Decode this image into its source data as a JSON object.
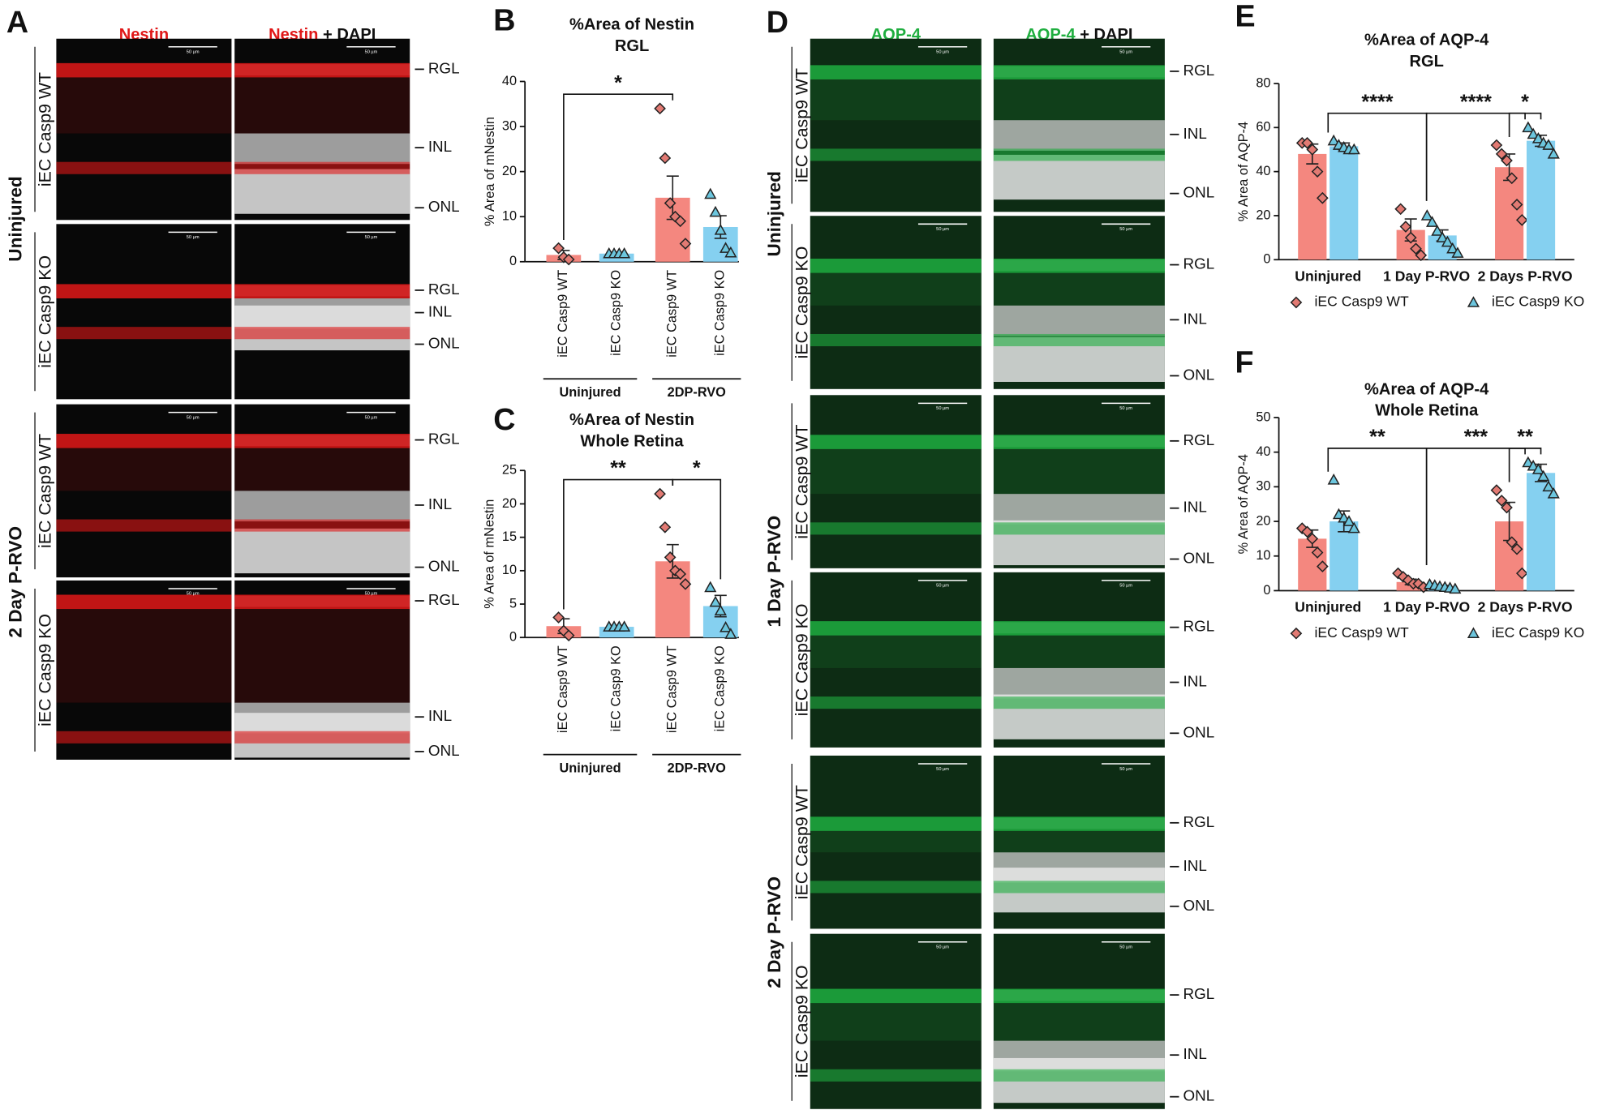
{
  "figure_a": {
    "panel": "A",
    "marker": "Nestin",
    "suffix": "+ DAPI",
    "scale_bar": "50 µm",
    "conditions": [
      "Uninjured",
      "2 Day P-RVO"
    ],
    "genotypes": [
      "iEC Casp9 WT",
      "iEC Casp9 KO"
    ],
    "layers": [
      "RGL",
      "INL",
      "ONL"
    ]
  },
  "figure_d": {
    "panel": "D",
    "marker": "AQP-4",
    "suffix": "+ DAPI",
    "scale_bar": "50 µm",
    "conditions": [
      "Uninjured",
      "1 Day P-RVO",
      "2 Day P-RVO"
    ],
    "genotypes": [
      "iEC Casp9 WT",
      "iEC Casp9 KO"
    ],
    "layers": [
      "RGL",
      "INL",
      "ONL"
    ]
  },
  "chart_data": [
    {
      "type": "bar",
      "panel": "B",
      "title": "%Area of Nestin",
      "subtitle": "RGL",
      "y_label": "% Area of mNestin",
      "categories": [
        "iEC Casp9 WT",
        "iEC Casp9 KO",
        "iEC Casp9 WT",
        "iEC Casp9 KO"
      ],
      "groups": [
        "Uninjured",
        "2DP-RVO"
      ],
      "values": [
        1.5,
        1.8,
        14.2,
        7.7
      ],
      "errors": [
        1,
        0.3,
        4.8,
        2.5
      ],
      "colors": [
        "#f4877f",
        "#85d0f0",
        "#f4877f",
        "#85d0f0"
      ],
      "point_markers": [
        "diamond",
        "triangle",
        "diamond",
        "triangle"
      ],
      "points": [
        [
          3,
          1,
          0.5
        ],
        [
          1.8,
          1.8,
          1.8,
          1.8
        ],
        [
          34,
          23,
          13,
          10,
          9,
          4
        ],
        [
          15,
          11,
          7,
          3,
          2
        ]
      ],
      "ylim": [
        0,
        40
      ],
      "yticks": [
        0,
        10,
        20,
        30,
        40
      ],
      "significance": [
        {
          "label": "*",
          "from": 0,
          "to": 2
        }
      ]
    },
    {
      "type": "bar",
      "panel": "C",
      "title": "%Area of Nestin",
      "subtitle": "Whole Retina",
      "y_label": "% Area of mNestin",
      "categories": [
        "iEC Casp9 WT",
        "iEC Casp9 KO",
        "iEC Casp9 WT",
        "iEC Casp9 KO"
      ],
      "groups": [
        "Uninjured",
        "2DP-RVO"
      ],
      "values": [
        1.7,
        1.6,
        11.4,
        4.7
      ],
      "errors": [
        1.1,
        0.2,
        2.5,
        1.6
      ],
      "colors": [
        "#f4877f",
        "#85d0f0",
        "#f4877f",
        "#85d0f0"
      ],
      "point_markers": [
        "diamond",
        "triangle",
        "diamond",
        "triangle"
      ],
      "points": [
        [
          3,
          1,
          0.3
        ],
        [
          1.6,
          1.6,
          1.6,
          1.6
        ],
        [
          21.5,
          16.5,
          12,
          10,
          9.5,
          8
        ],
        [
          7.5,
          5.3,
          4,
          1.5,
          0.5
        ]
      ],
      "ylim": [
        0,
        25
      ],
      "yticks": [
        0,
        5,
        10,
        15,
        20,
        25
      ],
      "significance": [
        {
          "label": "**",
          "from": 0,
          "to": 2
        },
        {
          "label": "*",
          "from": 2,
          "to": 3
        }
      ]
    },
    {
      "type": "grouped_bar",
      "panel": "E",
      "title": "%Area of AQP-4",
      "subtitle": "RGL",
      "y_label": "% Area of AQP-4",
      "categories": [
        "Uninjured",
        "1 Day P-RVO",
        "2 Days P-RVO"
      ],
      "series": [
        {
          "name": "iEC Casp9 WT",
          "color": "#f4877f",
          "marker": "diamond",
          "values": [
            48,
            13.5,
            42
          ],
          "errors": [
            4.5,
            5,
            6
          ],
          "points": [
            [
              53,
              53,
              50,
              40,
              28
            ],
            [
              23,
              15,
              10,
              5,
              2
            ],
            [
              52,
              48,
              45,
              37,
              25,
              18
            ]
          ]
        },
        {
          "name": "iEC Casp9 KO",
          "color": "#85d0f0",
          "marker": "triangle",
          "values": [
            51.5,
            11,
            54
          ],
          "errors": [
            1.5,
            2.5,
            2.5
          ],
          "points": [
            [
              54,
              52,
              51,
              50,
              50
            ],
            [
              20,
              17,
              13,
              10,
              8,
              5,
              3
            ],
            [
              60,
              57,
              55,
              53,
              52,
              48
            ]
          ]
        }
      ],
      "ylim": [
        0,
        80
      ],
      "yticks": [
        0,
        20,
        40,
        60,
        80
      ],
      "significance": [
        {
          "label": "****",
          "from": 0,
          "to": 1
        },
        {
          "label": "****",
          "from": 1,
          "to": 2
        },
        {
          "label": "*",
          "group": 2
        }
      ]
    },
    {
      "type": "grouped_bar",
      "panel": "F",
      "title": "%Area of AQP-4",
      "subtitle": "Whole Retina",
      "y_label": "% Area of AQP-4",
      "categories": [
        "Uninjured",
        "1 Day P-RVO",
        "2 Days P-RVO"
      ],
      "series": [
        {
          "name": "iEC Casp9 WT",
          "color": "#f4877f",
          "marker": "diamond",
          "values": [
            15,
            2.5,
            20
          ],
          "errors": [
            2.5,
            0.8,
            5.5
          ],
          "points": [
            [
              18,
              17,
              15,
              11,
              7
            ],
            [
              5,
              4,
              3,
              2,
              2,
              1
            ],
            [
              29,
              26,
              24,
              14,
              12,
              5
            ]
          ]
        },
        {
          "name": "iEC Casp9 KO",
          "color": "#85d0f0",
          "marker": "triangle",
          "values": [
            20,
            1.2,
            34
          ],
          "errors": [
            3,
            0.3,
            2.5
          ],
          "points": [
            [
              32,
              22,
              21,
              20,
              18
            ],
            [
              1.8,
              1.5,
              1.2,
              1,
              0.8,
              0.5
            ],
            [
              37,
              36,
              35,
              33,
              30,
              28
            ]
          ]
        }
      ],
      "ylim": [
        0,
        50
      ],
      "yticks": [
        0,
        10,
        20,
        30,
        40,
        50
      ],
      "significance": [
        {
          "label": "**",
          "from": 0,
          "to": 1
        },
        {
          "label": "***",
          "from": 1,
          "to": 2
        },
        {
          "label": "**",
          "group": 2
        }
      ]
    }
  ]
}
